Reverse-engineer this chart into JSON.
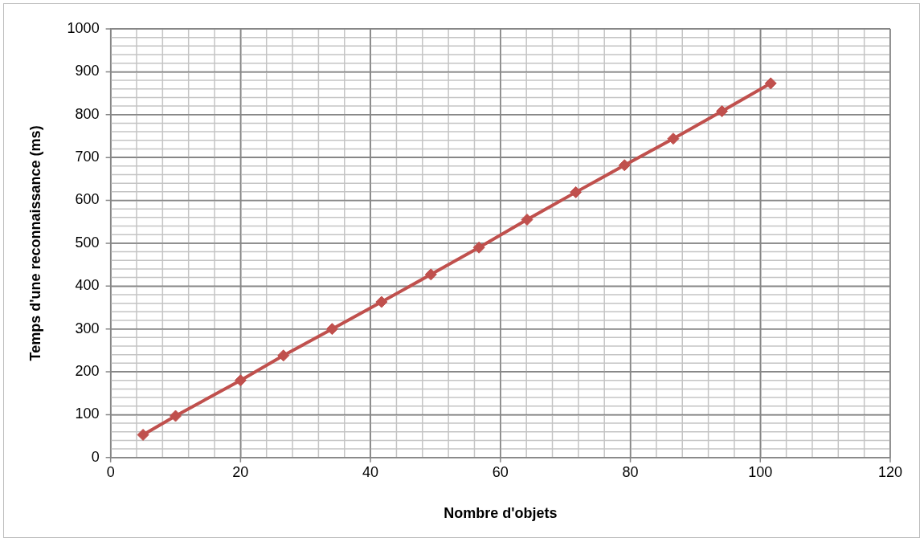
{
  "chart_data": {
    "type": "line",
    "xlabel": "Nombre d'objets",
    "ylabel": "Temps d'une reconnaissance (ms)",
    "x": [
      5,
      10,
      20,
      26.6,
      34.1,
      41.7,
      49.3,
      56.7,
      64.1,
      71.6,
      79.1,
      86.6,
      94.1,
      101.6
    ],
    "series": [
      {
        "color": "#c0504d",
        "values": [
          53,
          97,
          180,
          238,
          300,
          363,
          427,
          490,
          555,
          619,
          682,
          744,
          808,
          873
        ]
      }
    ],
    "xlim": [
      0,
      120
    ],
    "xticks": [
      0,
      20,
      40,
      60,
      80,
      100,
      120
    ],
    "ylim": [
      0,
      1000
    ],
    "yticks": [
      0,
      100,
      200,
      300,
      400,
      500,
      600,
      700,
      800,
      900,
      1000
    ],
    "grid": true,
    "legend": false,
    "marker": "diamond",
    "line_style": "solid"
  }
}
